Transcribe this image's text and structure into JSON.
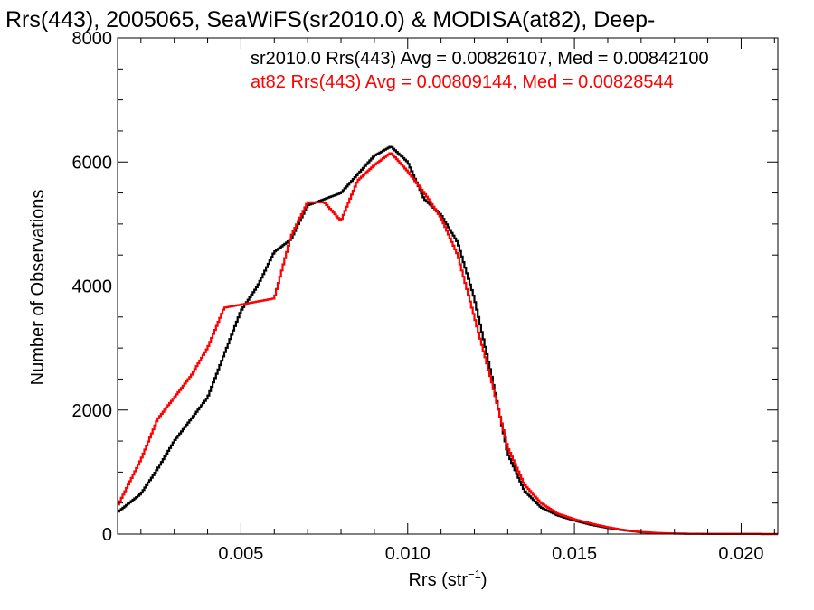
{
  "chart_data": {
    "type": "histogram-step",
    "title": "Rrs(443), 2005065, SeaWiFS(sr2010.0) & MODISA(at82), Deep-",
    "xlabel": "Rrs (str",
    "xlabel_sup": "−1",
    "xlabel_close": ")",
    "ylabel": "Number of Observations",
    "xlim": [
      0.0013,
      0.0211
    ],
    "ylim": [
      0,
      8000
    ],
    "x_ticks": [
      {
        "value": 0.005,
        "label": "0.005"
      },
      {
        "value": 0.01,
        "label": "0.010"
      },
      {
        "value": 0.015,
        "label": "0.015"
      },
      {
        "value": 0.02,
        "label": "0.020"
      }
    ],
    "y_ticks": [
      {
        "value": 0,
        "label": "0"
      },
      {
        "value": 2000,
        "label": "2000"
      },
      {
        "value": 4000,
        "label": "4000"
      },
      {
        "value": 6000,
        "label": "6000"
      },
      {
        "value": 8000,
        "label": "8000"
      }
    ],
    "grid": false,
    "legend_position": "top-right",
    "series": [
      {
        "name": "sr2010.0",
        "label": "sr2010.0 Rrs(443) Avg = 0.00826107, Med = 0.00842100",
        "color": "#000000",
        "points": [
          [
            0.0013,
            350
          ],
          [
            0.002,
            650
          ],
          [
            0.0025,
            1050
          ],
          [
            0.003,
            1500
          ],
          [
            0.0035,
            1850
          ],
          [
            0.004,
            2200
          ],
          [
            0.0045,
            2900
          ],
          [
            0.005,
            3600
          ],
          [
            0.0055,
            4000
          ],
          [
            0.006,
            4550
          ],
          [
            0.0065,
            4750
          ],
          [
            0.007,
            5300
          ],
          [
            0.0075,
            5400
          ],
          [
            0.008,
            5500
          ],
          [
            0.0085,
            5800
          ],
          [
            0.009,
            6100
          ],
          [
            0.0095,
            6250
          ],
          [
            0.01,
            6000
          ],
          [
            0.0105,
            5400
          ],
          [
            0.011,
            5150
          ],
          [
            0.0115,
            4700
          ],
          [
            0.012,
            3800
          ],
          [
            0.0125,
            2600
          ],
          [
            0.013,
            1300
          ],
          [
            0.0135,
            700
          ],
          [
            0.014,
            430
          ],
          [
            0.0145,
            300
          ],
          [
            0.015,
            220
          ],
          [
            0.0155,
            150
          ],
          [
            0.016,
            100
          ],
          [
            0.0165,
            60
          ],
          [
            0.017,
            30
          ],
          [
            0.0175,
            15
          ],
          [
            0.018,
            8
          ],
          [
            0.019,
            3
          ],
          [
            0.0211,
            0
          ]
        ]
      },
      {
        "name": "at82",
        "label": "at82 Rrs(443) Avg = 0.00809144, Med = 0.00828544",
        "color": "#ff0000",
        "points": [
          [
            0.0013,
            450
          ],
          [
            0.002,
            1200
          ],
          [
            0.0025,
            1850
          ],
          [
            0.003,
            2200
          ],
          [
            0.0035,
            2550
          ],
          [
            0.004,
            3000
          ],
          [
            0.0045,
            3650
          ],
          [
            0.005,
            3700
          ],
          [
            0.0055,
            3750
          ],
          [
            0.006,
            3800
          ],
          [
            0.0065,
            4800
          ],
          [
            0.007,
            5350
          ],
          [
            0.0075,
            5350
          ],
          [
            0.008,
            5050
          ],
          [
            0.0085,
            5700
          ],
          [
            0.009,
            5950
          ],
          [
            0.0095,
            6150
          ],
          [
            0.01,
            5850
          ],
          [
            0.0105,
            5500
          ],
          [
            0.011,
            5100
          ],
          [
            0.0115,
            4500
          ],
          [
            0.012,
            3500
          ],
          [
            0.0125,
            2500
          ],
          [
            0.013,
            1400
          ],
          [
            0.0135,
            800
          ],
          [
            0.014,
            500
          ],
          [
            0.0145,
            330
          ],
          [
            0.015,
            240
          ],
          [
            0.0155,
            170
          ],
          [
            0.016,
            110
          ],
          [
            0.0165,
            65
          ],
          [
            0.017,
            35
          ],
          [
            0.0175,
            18
          ],
          [
            0.018,
            9
          ],
          [
            0.019,
            3
          ],
          [
            0.0211,
            0
          ]
        ]
      }
    ]
  }
}
